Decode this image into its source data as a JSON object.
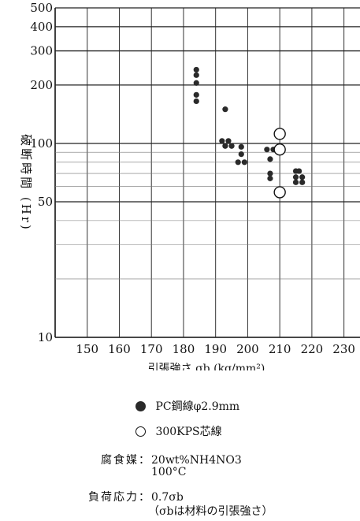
{
  "chart_data": {
    "type": "scatter",
    "title": "",
    "xlabel": "引張強さ σb (kg/mm²)",
    "ylabel": "破断時間 (Hr)",
    "xlim": [
      140,
      235
    ],
    "ylim": [
      10,
      500
    ],
    "y_scale": "log",
    "x_ticks": [
      150,
      160,
      170,
      180,
      190,
      200,
      210,
      220,
      230
    ],
    "x_tick_labels": [
      "150",
      "160",
      "170",
      "180",
      "190",
      "200",
      "210",
      "220",
      "230"
    ],
    "y_ticks": [
      10,
      50,
      100,
      200,
      300,
      400,
      500
    ],
    "y_tick_labels": [
      "10",
      "50",
      "100",
      "200",
      "300",
      "400",
      "500"
    ],
    "grid": true,
    "legend_position": "below",
    "series": [
      {
        "name": "PC鋼線φ2.9mm",
        "marker": "filled-circle",
        "color": "#2a2a2a",
        "points": [
          [
            184,
            240
          ],
          [
            184,
            225
          ],
          [
            184,
            205
          ],
          [
            184,
            178
          ],
          [
            184,
            165
          ],
          [
            193,
            150
          ],
          [
            192,
            103
          ],
          [
            194,
            103
          ],
          [
            193,
            97
          ],
          [
            195,
            97
          ],
          [
            197,
            80
          ],
          [
            198,
            96
          ],
          [
            198,
            88
          ],
          [
            199,
            80
          ],
          [
            206,
            93
          ],
          [
            208,
            93
          ],
          [
            207,
            83
          ],
          [
            207,
            70
          ],
          [
            207,
            66
          ],
          [
            215,
            72
          ],
          [
            216,
            72
          ],
          [
            215,
            67
          ],
          [
            217,
            67
          ],
          [
            215,
            63
          ],
          [
            217,
            63
          ]
        ]
      },
      {
        "name": "300KPS芯線",
        "marker": "hollow-circle",
        "color": "#111111",
        "points": [
          [
            210,
            112
          ],
          [
            210,
            93
          ],
          [
            210,
            56
          ]
        ]
      }
    ]
  },
  "notes": {
    "medium_label": "腐食媒：",
    "medium_line1": "20wt%NH4NO3",
    "medium_line2": "100°C",
    "load_label": "負荷応力：",
    "load_line1": "0.7σb",
    "load_line2": "（σbは材料の引張強さ）"
  }
}
